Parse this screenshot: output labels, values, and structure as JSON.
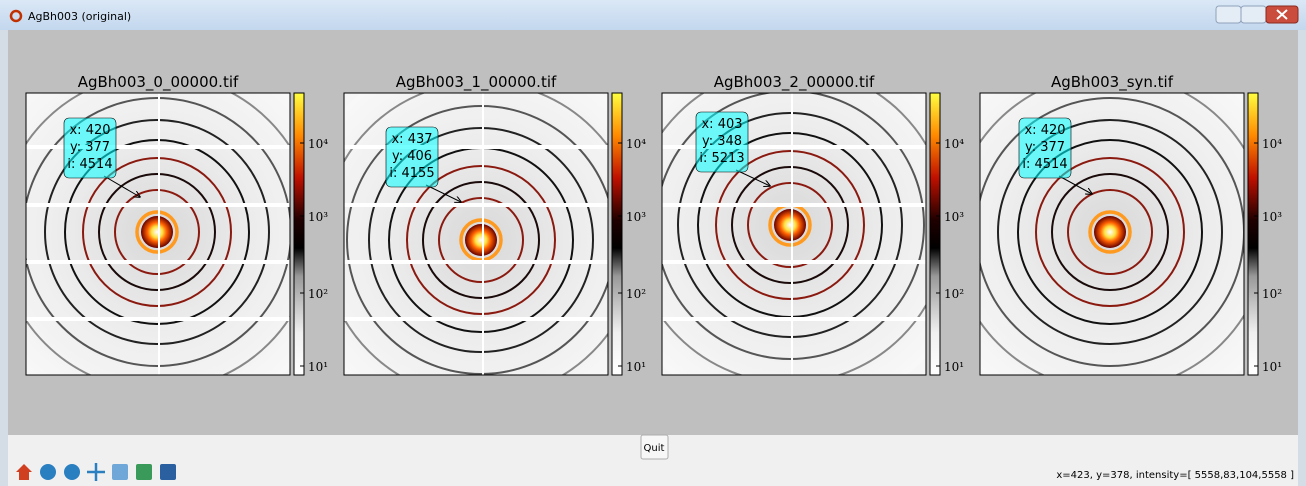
{
  "window": {
    "title": "AgBh003 (original)"
  },
  "panels": [
    {
      "title": "AgBh003_0_00000.tif",
      "annotation": [
        "x: 420",
        "y: 377",
        "i: 4514"
      ]
    },
    {
      "title": "AgBh003_1_00000.tif",
      "annotation": [
        "x: 437",
        "y: 406",
        "i: 4155"
      ]
    },
    {
      "title": "AgBh003_2_00000.tif",
      "annotation": [
        "x: 403",
        "y: 348",
        "i: 5213"
      ]
    },
    {
      "title": "AgBh003_syn.tif",
      "annotation": [
        "x: 420",
        "y: 377",
        "i: 4514"
      ]
    }
  ],
  "colorbar_ticks": [
    "10⁴",
    "10³",
    "10²",
    "10¹"
  ],
  "toolbar": {
    "quit": "Quit",
    "status": "x=423, y=378, intensity=[ 5558,83,104,5558 ]"
  }
}
